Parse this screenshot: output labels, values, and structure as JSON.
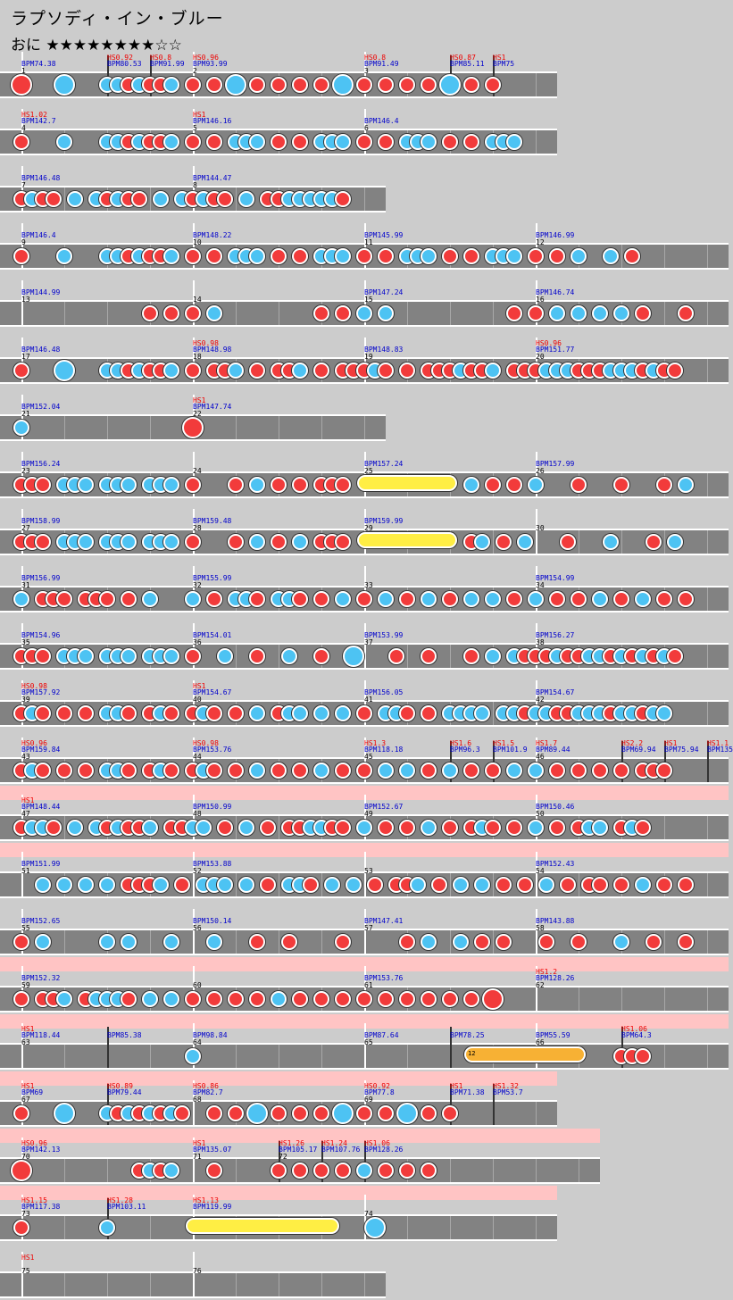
{
  "song": {
    "title": "ラプソディ・イン・ブルー",
    "difficulty": "おに",
    "stars": "★★★★★★★★☆☆"
  },
  "colors": {
    "background": "#cccccc",
    "lane": "#828282",
    "gogo": "#ffc4c4",
    "don": "#f23b3b",
    "ka": "#4dc3f3",
    "roll": "#ffee44",
    "balloon": "#f7b134",
    "hs_text": "#ee0000",
    "bpm_text": "#0000cc"
  },
  "rows": [
    {
      "bars": [
        {
          "bpm": "BPM74.38",
          "num": "1",
          "hs": "",
          "sub": [
            {
              "bpm": "BPM80.53",
              "hs": "HS0.92"
            },
            {
              "bpm": "BPM91.99",
              "hs": "HS0.8"
            }
          ],
          "notes": "D.K.KKDKDDK.D.D.K.D.D.K.DDDDK.D.D.K.D.D.D.D.K.D.D."
        },
        {
          "bpm": "BPM93.99",
          "num": "2",
          "hs": "HS0.96",
          "sub": [],
          "notes": ""
        },
        {
          "bpm": "BPM91.49",
          "num": "3",
          "hs": "HS0.8",
          "sub": [
            {
              "bpm": "BPM85.11",
              "hs": "HS0.87"
            },
            {
              "bpm": "BPM75",
              "hs": "HS1"
            }
          ],
          "notes": ""
        }
      ]
    },
    {
      "bars": [
        {
          "bpm": "BPM142.7",
          "num": "4",
          "hs": "HS1.02",
          "sub": [],
          "notes": ""
        },
        {
          "bpm": "BPM146.16",
          "num": "5",
          "hs": "HS1",
          "sub": [],
          "notes": ""
        },
        {
          "bpm": "BPM146.4",
          "num": "6",
          "hs": "",
          "sub": [],
          "notes": ""
        }
      ]
    },
    {
      "bars": [
        {
          "bpm": "BPM146.48",
          "num": "7",
          "hs": "",
          "sub": [],
          "notes": ""
        },
        {
          "bpm": "BPM144.47",
          "num": "8",
          "hs": "",
          "sub": [],
          "notes": ""
        }
      ]
    },
    {
      "bars": [
        {
          "bpm": "BPM146.4",
          "num": "9",
          "hs": "",
          "sub": [],
          "notes": ""
        },
        {
          "bpm": "BPM148.22",
          "num": "10",
          "hs": "",
          "sub": [],
          "notes": ""
        },
        {
          "bpm": "BPM145.99",
          "num": "11",
          "hs": "",
          "sub": [],
          "notes": ""
        },
        {
          "bpm": "BPM146.99",
          "num": "12",
          "hs": "",
          "sub": [],
          "notes": ""
        }
      ]
    },
    {
      "bars": [
        {
          "bpm": "BPM144.99",
          "num": "13",
          "hs": "",
          "sub": [],
          "notes": ""
        },
        {
          "bpm": "",
          "num": "14",
          "hs": "",
          "sub": [],
          "notes": ""
        },
        {
          "bpm": "BPM147.24",
          "num": "15",
          "hs": "",
          "sub": [],
          "notes": ""
        },
        {
          "bpm": "BPM146.74",
          "num": "16",
          "hs": "",
          "sub": [],
          "notes": ""
        }
      ]
    },
    {
      "bars": [
        {
          "bpm": "BPM146.48",
          "num": "17",
          "hs": "",
          "sub": [],
          "notes": ""
        },
        {
          "bpm": "BPM148.98",
          "num": "18",
          "hs": "HS0.98",
          "sub": [],
          "notes": ""
        },
        {
          "bpm": "BPM148.83",
          "num": "19",
          "hs": "",
          "sub": [],
          "notes": ""
        },
        {
          "bpm": "BPM151.77",
          "num": "20",
          "hs": "HS0.96",
          "sub": [],
          "notes": ""
        }
      ]
    },
    {
      "bars": [
        {
          "bpm": "BPM152.04",
          "num": "21",
          "hs": "",
          "sub": [],
          "notes": ""
        },
        {
          "bpm": "BPM147.74",
          "num": "22",
          "hs": "HS1",
          "sub": [],
          "notes": ""
        }
      ]
    },
    {
      "bars": [
        {
          "bpm": "BPM156.24",
          "num": "23",
          "hs": "",
          "sub": [],
          "notes": ""
        },
        {
          "bpm": "",
          "num": "24",
          "hs": "",
          "sub": [],
          "notes": ""
        },
        {
          "bpm": "BPM157.24",
          "num": "25",
          "hs": "",
          "sub": [],
          "notes": ""
        },
        {
          "bpm": "BPM157.99",
          "num": "26",
          "hs": "",
          "sub": [],
          "notes": ""
        }
      ]
    },
    {
      "bars": [
        {
          "bpm": "BPM158.99",
          "num": "27",
          "hs": "",
          "sub": [],
          "notes": ""
        },
        {
          "bpm": "BPM159.48",
          "num": "28",
          "hs": "",
          "sub": [],
          "notes": ""
        },
        {
          "bpm": "BPM159.99",
          "num": "29",
          "hs": "",
          "sub": [],
          "notes": ""
        },
        {
          "bpm": "",
          "num": "30",
          "hs": "",
          "sub": [],
          "notes": ""
        }
      ]
    },
    {
      "bars": [
        {
          "bpm": "BPM156.99",
          "num": "31",
          "hs": "",
          "sub": [],
          "notes": ""
        },
        {
          "bpm": "BPM155.99",
          "num": "32",
          "hs": "",
          "sub": [],
          "notes": ""
        },
        {
          "bpm": "",
          "num": "33",
          "hs": "",
          "sub": [],
          "notes": ""
        },
        {
          "bpm": "BPM154.99",
          "num": "34",
          "hs": "",
          "sub": [],
          "notes": ""
        }
      ]
    },
    {
      "bars": [
        {
          "bpm": "BPM154.96",
          "num": "35",
          "hs": "",
          "sub": [],
          "notes": ""
        },
        {
          "bpm": "BPM154.01",
          "num": "36",
          "hs": "",
          "sub": [],
          "notes": ""
        },
        {
          "bpm": "BPM153.99",
          "num": "37",
          "hs": "",
          "sub": [],
          "notes": ""
        },
        {
          "bpm": "BPM156.27",
          "num": "38",
          "hs": "",
          "sub": [],
          "notes": ""
        }
      ]
    },
    {
      "bars": [
        {
          "bpm": "BPM157.92",
          "num": "39",
          "hs": "HS0.98",
          "sub": [],
          "notes": ""
        },
        {
          "bpm": "BPM154.67",
          "num": "40",
          "hs": "HS1",
          "sub": [],
          "notes": ""
        },
        {
          "bpm": "BPM156.05",
          "num": "41",
          "hs": "",
          "sub": [],
          "notes": ""
        },
        {
          "bpm": "BPM154.67",
          "num": "42",
          "hs": "",
          "sub": [],
          "notes": ""
        }
      ]
    },
    {
      "bars": [
        {
          "bpm": "BPM159.84",
          "num": "43",
          "hs": "HS0.96",
          "sub": [],
          "notes": ""
        },
        {
          "bpm": "BPM153.76",
          "num": "44",
          "hs": "HS0.98",
          "sub": [],
          "notes": ""
        },
        {
          "bpm": "BPM118.18",
          "num": "45",
          "hs": "HS1.3",
          "sub": [
            {
              "bpm": "BPM96.3",
              "hs": "HS1.6"
            },
            {
              "bpm": "BPM101.9",
              "hs": "HS1.5"
            }
          ],
          "notes": ""
        },
        {
          "bpm": "BPM89.44",
          "num": "46",
          "hs": "HS1.7",
          "sub": [
            {
              "bpm": "BPM69.94",
              "hs": "HS2.2"
            },
            {
              "bpm": "BPM75.94",
              "hs": "HS1"
            },
            {
              "bpm": "BPM135",
              "hs": "HS1.1"
            }
          ],
          "notes": ""
        }
      ]
    },
    {
      "bars": [
        {
          "bpm": "BPM148.44",
          "num": "47",
          "hs": "HS1",
          "sub": [],
          "notes": ""
        },
        {
          "bpm": "BPM150.99",
          "num": "48",
          "hs": "",
          "sub": [],
          "notes": ""
        },
        {
          "bpm": "BPM152.67",
          "num": "49",
          "hs": "",
          "sub": [],
          "notes": ""
        },
        {
          "bpm": "BPM150.46",
          "num": "50",
          "hs": "",
          "sub": [],
          "notes": ""
        }
      ]
    },
    {
      "bars": [
        {
          "bpm": "BPM151.99",
          "num": "51",
          "hs": "",
          "sub": [],
          "notes": ""
        },
        {
          "bpm": "BPM153.88",
          "num": "52",
          "hs": "",
          "sub": [],
          "notes": ""
        },
        {
          "bpm": "",
          "num": "53",
          "hs": "",
          "sub": [],
          "notes": ""
        },
        {
          "bpm": "BPM152.43",
          "num": "54",
          "hs": "",
          "sub": [],
          "notes": ""
        }
      ]
    },
    {
      "bars": [
        {
          "bpm": "BPM152.65",
          "num": "55",
          "hs": "",
          "sub": [],
          "notes": ""
        },
        {
          "bpm": "BPM150.14",
          "num": "56",
          "hs": "",
          "sub": [],
          "notes": ""
        },
        {
          "bpm": "BPM147.41",
          "num": "57",
          "hs": "",
          "sub": [],
          "notes": ""
        },
        {
          "bpm": "BPM143.88",
          "num": "58",
          "hs": "",
          "sub": [],
          "notes": ""
        }
      ]
    },
    {
      "bars": [
        {
          "bpm": "BPM152.32",
          "num": "59",
          "hs": "",
          "sub": [],
          "notes": ""
        },
        {
          "bpm": "",
          "num": "60",
          "hs": "",
          "sub": [],
          "notes": ""
        },
        {
          "bpm": "BPM153.76",
          "num": "61",
          "hs": "",
          "sub": [],
          "notes": ""
        },
        {
          "bpm": "BPM128.26",
          "num": "62",
          "hs": "HS1.2",
          "sub": [],
          "notes": ""
        }
      ]
    },
    {
      "bars": [
        {
          "bpm": "BPM118.44",
          "num": "63",
          "hs": "HS1",
          "sub": [
            {
              "bpm": "BPM85.38",
              "hs": ""
            }
          ],
          "notes": ""
        },
        {
          "bpm": "BPM98.84",
          "num": "64",
          "hs": "",
          "sub": [],
          "notes": ""
        },
        {
          "bpm": "BPM87.64",
          "num": "65",
          "hs": "",
          "sub": [
            {
              "bpm": "BPM78.25",
              "hs": ""
            }
          ],
          "notes": ""
        },
        {
          "bpm": "BPM55.59",
          "num": "66",
          "hs": "",
          "sub": [
            {
              "bpm": "BPM64.3",
              "hs": "HS1.06"
            }
          ],
          "notes": ""
        }
      ]
    },
    {
      "bars": [
        {
          "bpm": "BPM69",
          "num": "67",
          "hs": "HS1",
          "sub": [
            {
              "bpm": "BPM79.44",
              "hs": "HS0.89"
            }
          ],
          "notes": ""
        },
        {
          "bpm": "BPM82.7",
          "num": "68",
          "hs": "HS0.86",
          "sub": [],
          "notes": ""
        },
        {
          "bpm": "BPM77.8",
          "num": "69",
          "hs": "HS0.92",
          "sub": [
            {
              "bpm": "BPM71.38",
              "hs": "HS1"
            },
            {
              "bpm": "BPM53.7",
              "hs": "HS1.32"
            }
          ],
          "notes": ""
        }
      ]
    },
    {
      "bars": [
        {
          "bpm": "BPM142.13",
          "num": "70",
          "hs": "HS0.96",
          "sub": [],
          "notes": ""
        },
        {
          "bpm": "BPM135.07",
          "num": "71",
          "hs": "HS1",
          "sub": [
            {
              "bpm": "BPM105.17",
              "hs": "HS1.26",
              "num": "72"
            },
            {
              "bpm": "BPM107.76",
              "hs": "HS1.24"
            },
            {
              "bpm": "BPM128.26",
              "hs": "HS1.06"
            }
          ],
          "notes": ""
        }
      ]
    },
    {
      "bars": [
        {
          "bpm": "BPM117.38",
          "num": "73",
          "hs": "HS1.15",
          "sub": [
            {
              "bpm": "BPM103.11",
              "hs": "HS1.28"
            }
          ],
          "notes": ""
        },
        {
          "bpm": "BPM119.99",
          "num": "",
          "hs": "HS1.13",
          "sub": [],
          "notes": ""
        },
        {
          "bpm": "",
          "num": "74",
          "hs": "",
          "sub": [],
          "notes": ""
        }
      ]
    },
    {
      "bars": [
        {
          "bpm": "",
          "num": "75",
          "hs": "HS1",
          "sub": [],
          "notes": ""
        },
        {
          "bpm": "",
          "num": "76",
          "hs": "",
          "sub": [],
          "notes": ""
        }
      ]
    }
  ],
  "balloon_count": "12"
}
